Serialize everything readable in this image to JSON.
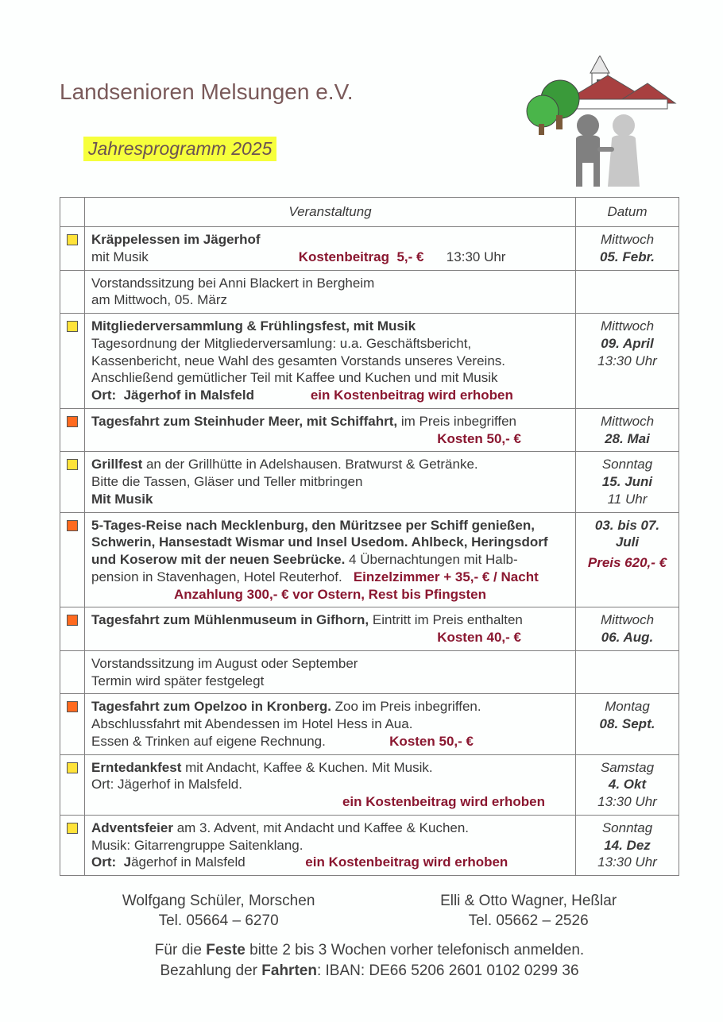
{
  "colors": {
    "title": "#7a5a5a",
    "highlight_bg": "#f6ff3c",
    "cost_text": "#8a1730",
    "border": "#808080",
    "text": "#3a3a3a",
    "bullet_yellow": "#ffe33a",
    "bullet_orange": "#ff6a1f",
    "page_bg": "#fdfffe"
  },
  "header": {
    "title": "Landsenioren Melsungen e.V.",
    "subtitle": "Jahresprogramm 2025"
  },
  "table": {
    "col_event": "Veranstaltung",
    "col_date": "Datum"
  },
  "rows": [
    {
      "bullet": "yellow",
      "html": "<span class='bold'>Kräppelessen im Jägerhof</span><br>mit Musik &nbsp;&nbsp;&nbsp;&nbsp;&nbsp;&nbsp;&nbsp;&nbsp;&nbsp;&nbsp;&nbsp;&nbsp;&nbsp;&nbsp;&nbsp;&nbsp;&nbsp;&nbsp;&nbsp;&nbsp;&nbsp;&nbsp;&nbsp;&nbsp;&nbsp;&nbsp;&nbsp;&nbsp;&nbsp;&nbsp;&nbsp;&nbsp;&nbsp;&nbsp;&nbsp;&nbsp;&nbsp;&nbsp;&nbsp;<span class='cost'>Kostenbeitrag&nbsp; 5,- €</span>&nbsp;&nbsp;&nbsp;&nbsp;&nbsp;&nbsp;13:30 Uhr",
      "day": "Mittwoch",
      "date": "05. Febr.",
      "time": ""
    },
    {
      "bullet": "",
      "html": "Vorstandssitzung bei Anni Blackert in Bergheim<br>am Mittwoch, 05. März",
      "day": "",
      "date": "",
      "time": ""
    },
    {
      "bullet": "yellow",
      "html": "<span class='bold'>Mitgliederversammlung & Frühlingsfest, mit Musik</span><br>Tagesordnung der Mitgliederversamlung: u.a. Geschäftsbericht,<br>Kassenbericht, neue Wahl des gesamten Vorstands unseres Vereins.<br>Anschließend gemütlicher Teil mit Kaffee und Kuchen und mit Musik<br><span class='bold'>Ort:&nbsp; Jägerhof in Malsfeld</span>&nbsp;&nbsp;&nbsp;&nbsp;&nbsp;&nbsp;&nbsp;&nbsp;&nbsp;&nbsp;&nbsp;&nbsp;&nbsp;&nbsp;&nbsp;<span class='cost'>ein Kostenbeitrag wird erhoben</span>",
      "day": "Mittwoch",
      "date": "09. April",
      "time": "13:30 Uhr"
    },
    {
      "bullet": "orange",
      "html": "<span class='bold'>Tagesfahrt zum Steinhuder Meer, mit Schiffahrt,</span> im Preis inbegriffen<br><span style='display:block;text-align:right;padding-right:60px;'><span class='cost'>Kosten 50,- €</span></span>",
      "day": "Mittwoch",
      "date": "28. Mai",
      "time": ""
    },
    {
      "bullet": "yellow",
      "html": "<span class='bold'>Grillfest</span> an der Grillhütte in Adelshausen. Bratwurst & Getränke.<br>Bitte die Tassen, Gläser und Teller mitbringen<br><span class='bold'>Mit Musik</span>",
      "day": "Sonntag",
      "date": "15. Juni",
      "time": "11 Uhr"
    },
    {
      "bullet": "orange",
      "html": "<span class='bold'>5-Tages-Reise nach Mecklenburg, den Müritzsee per Schiff genießen, Schwerin, Hansestadt Wismar und Insel Usedom. Ahlbeck, Heringsdorf und Koserow mit der neuen Seebrücke.</span> 4 Übernachtungen mit Halb-<br>pension in Stavenhagen, Hotel Reuterhof.&nbsp;&nbsp;&nbsp;<span class='cost'>Einzelzimmer + 35,- € / Nacht</span><br><span style='display:block;text-align:center;'><span class='cost'>Anzahlung 300,- € vor Ostern, Rest bis Pfingsten</span></span>",
      "day": "",
      "date": "03. bis 07. Juli",
      "time": "",
      "price": "Preis 620,- €"
    },
    {
      "bullet": "orange",
      "html": "<span class='bold'>Tagesfahrt zum Mühlenmuseum in Gifhorn,</span> Eintritt im Preis enthalten<br><span style='display:block;text-align:right;padding-right:60px;'><span class='cost'>Kosten 40,- €</span></span>",
      "day": "Mittwoch",
      "date": "06. Aug.",
      "time": ""
    },
    {
      "bullet": "",
      "html": "Vorstandssitzung im August oder September<br>Termin wird später festgelegt",
      "day": "",
      "date": "",
      "time": ""
    },
    {
      "bullet": "orange",
      "html": "<span class='bold'>Tagesfahrt zum Opelzoo in Kronberg.</span> Zoo im Preis inbegriffen.<br>Abschlussfahrt mit Abendessen im Hotel Hess in Aua.<br>Essen & Trinken auf eigene Rechnung.&nbsp;&nbsp;&nbsp;&nbsp;&nbsp;&nbsp;&nbsp;&nbsp;&nbsp;&nbsp;&nbsp;&nbsp;&nbsp;&nbsp;&nbsp;&nbsp;&nbsp;<span class='cost'>Kosten 50,- €</span>",
      "day": "Montag",
      "date": "08. Sept.",
      "time": ""
    },
    {
      "bullet": "yellow",
      "html": "<span class='bold'>Erntedankfest</span> mit Andacht, Kaffee & Kuchen. Mit Musik.<br>Ort: Jägerhof in Malsfeld.<br><span style='display:block;text-align:right;padding-right:30px;'><span class='cost'>ein Kostenbeitrag wird erhoben</span></span>",
      "day": "Samstag",
      "date": "4. Okt",
      "time": "13:30 Uhr"
    },
    {
      "bullet": "yellow",
      "html": "<span class='bold'>Adventsfeier</span> am 3. Advent, mit Andacht und Kaffee & Kuchen.<br>Musik: Gitarrengruppe Saitenklang.<br><span class='bold'>Ort:&nbsp; J</span>ägerhof in Malsfeld&nbsp;&nbsp;&nbsp;&nbsp;&nbsp;&nbsp;&nbsp;&nbsp;&nbsp;&nbsp;&nbsp;&nbsp;&nbsp;&nbsp;&nbsp;&nbsp;<span class='cost'>ein Kostenbeitrag wird erhoben</span>",
      "day": "Sonntag",
      "date": "14. Dez",
      "time": "13:30 Uhr"
    }
  ],
  "footer": {
    "contact1_name": "Wolfgang Schüler, Morschen",
    "contact1_tel": "Tel. 05664 – 6270",
    "contact2_name": "Elli & Otto Wagner, Heßlar",
    "contact2_tel": "Tel. 05662 – 2526",
    "note1_pre": "Für die ",
    "note1_bold1": "Feste",
    "note1_mid": " bitte 2 bis 3 Wochen vorher telefonisch anmelden.",
    "note2_pre": "Bezahlung der ",
    "note2_bold": "Fahrten",
    "note2_post": ": IBAN:  DE66 5206 2601 0102 0299 36"
  }
}
